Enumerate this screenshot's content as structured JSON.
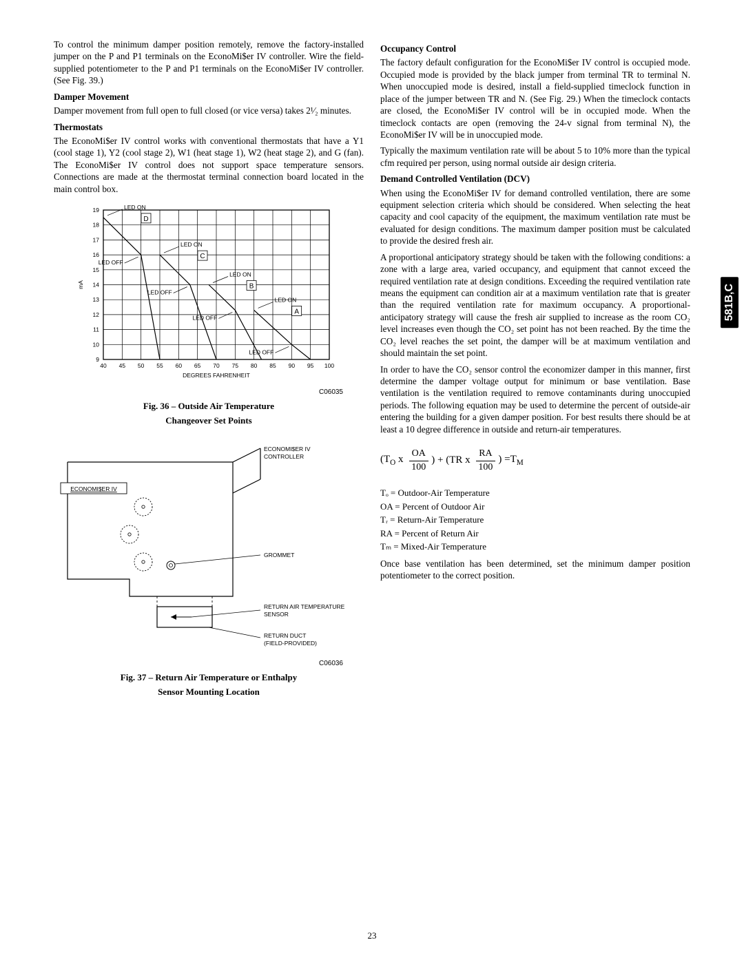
{
  "sideTab": "581B,C",
  "pageNumber": "23",
  "left": {
    "intro": "To control the minimum damper position remotely, remove the factory-installed jumper on the P and P1 terminals on the EconoMi$er IV controller. Wire the field-supplied potentiometer to the P and P1 terminals on the EconoMi$er IV controller. (See Fig. 39.)",
    "h_damper": "Damper Movement",
    "p_damper": "Damper movement from full open to full closed (or vice versa) takes 2¹⁄₂ minutes.",
    "h_therm": "Thermostats",
    "p_therm": "The EconoMi$er IV control works with conventional thermostats that have a Y1 (cool stage 1), Y2 (cool stage 2), W1 (heat stage 1), W2 (heat stage 2), and G (fan). The EconoMi$er IV control does not support space temperature sensors. Connections are made at the thermostat terminal connection board located in the main control box.",
    "fig36_code": "C06035",
    "fig36_cap1": "Fig. 36 – Outside Air Temperature",
    "fig36_cap2": "Changeover Set Points",
    "fig37_code": "C06036",
    "fig37_cap1": "Fig. 37 – Return Air Temperature or Enthalpy",
    "fig37_cap2": "Sensor Mounting Location"
  },
  "right": {
    "h_occ": "Occupancy Control",
    "p_occ1": "The factory default configuration for the EconoMi$er IV control is occupied mode. Occupied mode is provided by the black jumper from terminal TR to terminal N. When unoccupied mode is desired, install a field-supplied timeclock function in place of the jumper between TR and N. (See Fig. 29.) When the timeclock contacts are closed, the EconoMi$er IV control will be in occupied mode. When the timeclock contacts are open (removing the 24-v signal from terminal N), the EconoMi$er IV will be in unoccupied mode.",
    "p_occ2": "Typically the maximum ventilation rate will be about 5 to 10% more than the typical cfm required per person, using normal outside air design criteria.",
    "h_dcv": "Demand Controlled Ventilation (DCV)",
    "p_dcv1": "When using the EconoMi$er IV for demand controlled ventilation, there are some equipment selection criteria which should be considered. When selecting the heat capacity and cool capacity of the equipment, the maximum ventilation rate must be evaluated for design conditions. The maximum damper position must be calculated to provide the desired fresh air.",
    "p_dcv2": "A proportional anticipatory strategy should be taken with the following conditions: a zone with a large area, varied occupancy, and equipment that cannot exceed the required ventilation rate at design conditions. Exceeding the required ventilation rate means the equipment can condition air at a maximum ventilation rate that is greater than the required ventilation rate for maximum occupancy. A proportional-anticipatory strategy will cause the fresh air supplied to increase as the room CO₂ level increases even though the CO₂ set point has not been reached. By the time the CO₂ level reaches the set point, the damper will be at maximum ventilation and should maintain the set point.",
    "p_dcv3": "In order to have the CO₂ sensor control the economizer damper in this manner, first determine the damper voltage output for minimum or base ventilation. Base ventilation is the ventilation required to remove contaminants during unoccupied periods. The following equation may be used to determine the percent of outside-air entering the building for a given damper position. For best results there should be at least a 10 degree difference in outside and return-air temperatures.",
    "eq": {
      "oa_num": "OA",
      "oa_den": "100",
      "ra_num": "RA",
      "ra_den": "100"
    },
    "defs": {
      "to": "Tₒ = Outdoor-Air Temperature",
      "oa": "OA = Percent of Outdoor Air",
      "tr": "Tᵣ = Return-Air Temperature",
      "ra": "RA = Percent of Return Air",
      "tm": "Tₘ = Mixed-Air Temperature"
    },
    "p_dcv4": "Once base ventilation has been determined, set the minimum damper position potentiometer to the correct position."
  },
  "chart": {
    "type": "line",
    "ylabel": "mA",
    "xlabel": "DEGREES FAHRENHEIT",
    "xlim": [
      40,
      100
    ],
    "ylim": [
      9,
      19
    ],
    "xticks": [
      40,
      45,
      50,
      55,
      60,
      65,
      70,
      75,
      80,
      85,
      90,
      95,
      100
    ],
    "yticks": [
      9,
      10,
      11,
      12,
      13,
      14,
      15,
      16,
      17,
      18,
      19
    ],
    "grid_color": "#000000",
    "background_color": "#ffffff",
    "line_color": "#000000",
    "line_width": 1.2,
    "series": [
      {
        "label": "D",
        "on": [
          40,
          18.5
        ],
        "off": [
          50,
          16
        ],
        "end": [
          55,
          9
        ]
      },
      {
        "label": "C",
        "on": [
          55,
          16
        ],
        "off": [
          63,
          14
        ],
        "end": [
          70,
          9
        ]
      },
      {
        "label": "B",
        "on": [
          68,
          14
        ],
        "off": [
          75,
          12.3
        ],
        "end": [
          82,
          9
        ]
      },
      {
        "label": "A",
        "on": [
          80,
          12.3
        ],
        "off": [
          90,
          10
        ],
        "end": [
          95,
          9
        ]
      }
    ],
    "labels": [
      "LED ON",
      "LED OFF"
    ],
    "label_fontsize": 8.5,
    "axis_fontsize": 8.5
  },
  "diagram": {
    "type": "schematic",
    "line_color": "#000000",
    "line_width": 1.2,
    "labels": {
      "ctrl": "ECONOMI$ER IV\nCONTROLLER",
      "box": "ECONOMI$ER IV",
      "grommet": "GROMMET",
      "sensor": "RETURN AIR TEMPERATURE\nSENSOR",
      "duct": "RETURN DUCT\n(FIELD-PROVIDED)"
    },
    "label_fontsize": 8.5
  }
}
